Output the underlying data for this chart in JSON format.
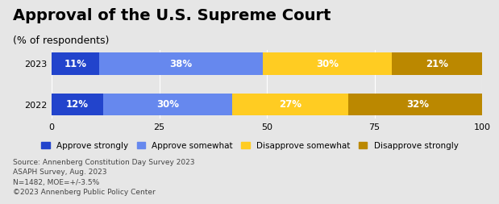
{
  "title": "Approval of the U.S. Supreme Court",
  "subtitle": "(% of respondents)",
  "years": [
    "2023",
    "2022"
  ],
  "categories": [
    "Approve strongly",
    "Approve somewhat",
    "Disapprove somewhat",
    "Disapprove strongly"
  ],
  "values": {
    "2023": [
      11,
      38,
      30,
      21
    ],
    "2022": [
      12,
      30,
      27,
      32
    ]
  },
  "colors": [
    "#2244cc",
    "#6688ee",
    "#ffcc22",
    "#bb8800"
  ],
  "xlim": [
    0,
    100
  ],
  "xticks": [
    0,
    25,
    50,
    75,
    100
  ],
  "bar_height": 0.55,
  "label_color": "#ffffff",
  "label_color_dark": "#000000",
  "background_color": "#e6e6e6",
  "footnote": "Source: Annenberg Constitution Day Survey 2023\nASAPH Survey, Aug. 2023\nN=1482, MOE=+/-3.5%\n©2023 Annenberg Public Policy Center",
  "title_fontsize": 14,
  "subtitle_fontsize": 9,
  "label_fontsize": 8.5,
  "tick_fontsize": 8,
  "legend_fontsize": 7.5,
  "footnote_fontsize": 6.5
}
